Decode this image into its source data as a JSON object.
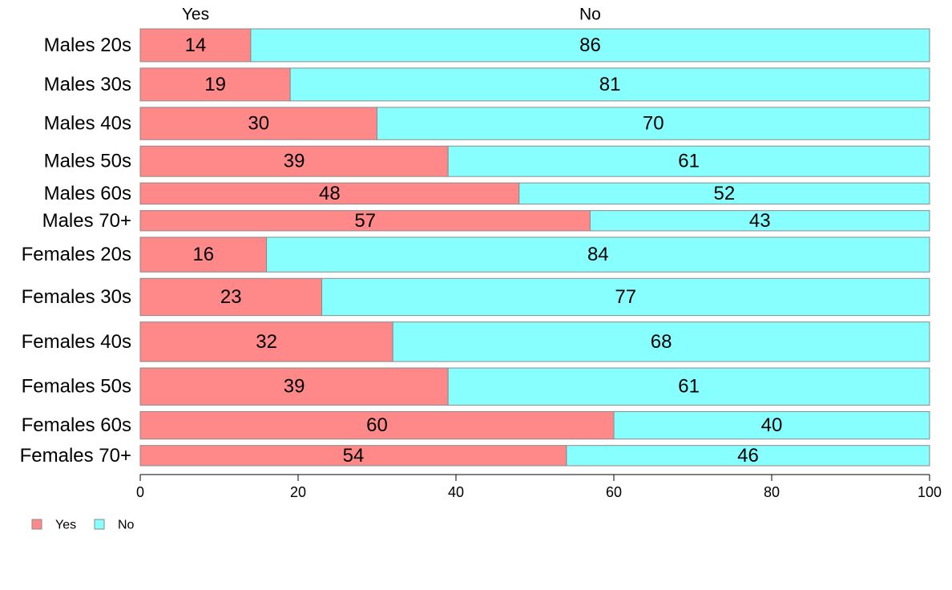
{
  "chart_data": {
    "type": "bar",
    "orientation": "horizontal",
    "stacked": true,
    "categories": [
      "Males 20s",
      "Males 30s",
      "Males 40s",
      "Males 50s",
      "Males 60s",
      "Males 70+",
      "Females 20s",
      "Females 30s",
      "Females 40s",
      "Females 50s",
      "Females 60s",
      "Females 70+"
    ],
    "row_weights": [
      0.68,
      0.68,
      0.67,
      0.63,
      0.44,
      0.42,
      0.72,
      0.77,
      0.82,
      0.77,
      0.57,
      0.42
    ],
    "series": [
      {
        "name": "Yes",
        "color": "#ff8888",
        "values": [
          14,
          19,
          30,
          39,
          48,
          57,
          16,
          23,
          32,
          39,
          60,
          54
        ],
        "labels": [
          "14",
          "19",
          "30",
          "39",
          "48",
          "57",
          "16",
          "23",
          "32",
          "39",
          "60",
          "54"
        ]
      },
      {
        "name": "No",
        "color": "#88ffff",
        "values": [
          86,
          81,
          70,
          61,
          52,
          43,
          84,
          77,
          68,
          61,
          40,
          46
        ],
        "labels": [
          "86",
          "81",
          "70",
          "61",
          "52",
          "43",
          "84",
          "77",
          "68",
          "61",
          "40",
          "46"
        ]
      }
    ],
    "top_labels": [
      "Yes",
      "No"
    ],
    "xlim": [
      0,
      100
    ],
    "xticks": [
      0,
      20,
      40,
      60,
      80,
      100
    ],
    "xtick_labels": [
      "0",
      "20",
      "40",
      "60",
      "80",
      "100"
    ],
    "title": "",
    "xlabel": "",
    "ylabel": "",
    "grid": false,
    "legend": {
      "placement": "bottom-left",
      "items": [
        "Yes",
        "No"
      ]
    }
  }
}
